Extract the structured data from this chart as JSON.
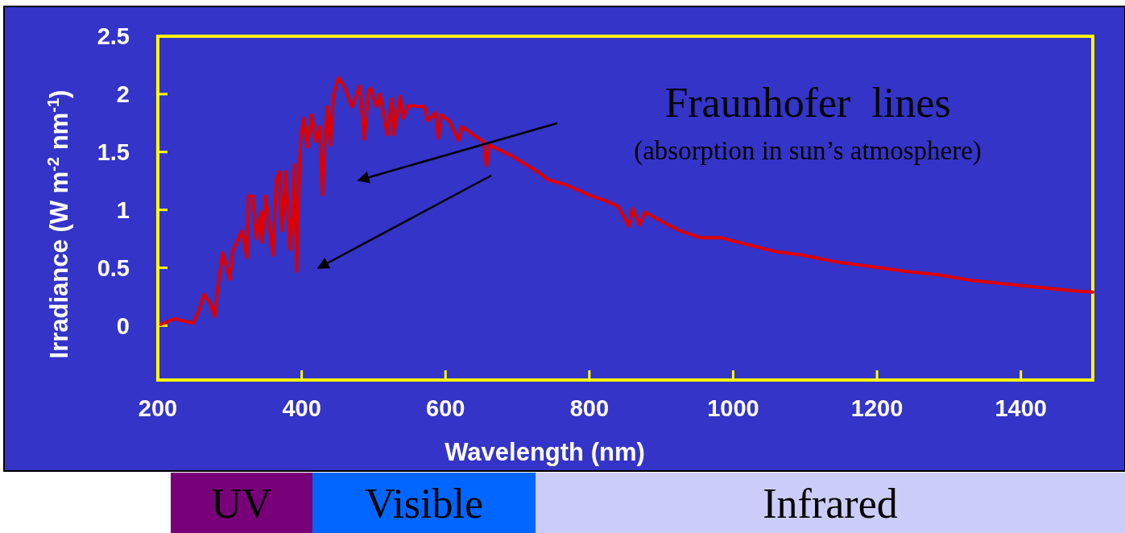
{
  "chart_data": {
    "type": "line",
    "xlabel": "Wavelength (nm)",
    "ylabel": "Irradiance (W m$^{-2}$ nm$^{-1}$)",
    "annotations": [
      "Fraunhofer  lines",
      "(absorption in sun’s atmosphere)",
      "UV",
      "Visible",
      "Infrared"
    ],
    "xlim": [
      200,
      1500
    ],
    "ylim": [
      -0.47,
      2.5
    ],
    "xticks": [
      200,
      400,
      600,
      800,
      1000,
      1200,
      1400
    ],
    "yticks": [
      0,
      0.5,
      1,
      1.5,
      2,
      2.5
    ],
    "series": [
      {
        "color": "#dd0000",
        "x": [
          204,
          223,
          249,
          257,
          264,
          272,
          279,
          283,
          290,
          294,
          300,
          304,
          311,
          317,
          324,
          326,
          332,
          337,
          343,
          345,
          350,
          360,
          365,
          369,
          373,
          378,
          384,
          388,
          390,
          393,
          397,
          399,
          403,
          408,
          414,
          420,
          425,
          429,
          433,
          436,
          440,
          444,
          451,
          459,
          470,
          481,
          487,
          493,
          496,
          504,
          509,
          519,
          526,
          528,
          537,
          541,
          548,
          571,
          575,
          586,
          590,
          594,
          605,
          618,
          623,
          638,
          653,
          657,
          661,
          691,
          728,
          743,
          766,
          803,
          822,
          840,
          855,
          860,
          870,
          877,
          907,
          926,
          954,
          983,
          1001,
          1059,
          1096,
          1144,
          1191,
          1238,
          1285,
          1332,
          1380,
          1427,
          1474,
          1500
        ],
        "values": [
          0.01,
          0.06,
          0.02,
          0.13,
          0.27,
          0.2,
          0.08,
          0.31,
          0.63,
          0.54,
          0.4,
          0.64,
          0.74,
          0.82,
          0.59,
          1.12,
          1.12,
          0.75,
          0.98,
          0.72,
          1.12,
          0.61,
          1.26,
          1.33,
          0.82,
          1.33,
          0.66,
          1.08,
          1.39,
          0.47,
          1.38,
          1.65,
          1.79,
          1.54,
          1.82,
          1.59,
          1.72,
          1.13,
          1.68,
          1.89,
          1.56,
          1.98,
          2.14,
          2.07,
          1.89,
          2.07,
          1.61,
          2.03,
          2.05,
          1.89,
          2.0,
          1.65,
          1.96,
          1.65,
          1.98,
          1.79,
          1.9,
          1.89,
          1.77,
          1.84,
          1.62,
          1.82,
          1.77,
          1.6,
          1.72,
          1.65,
          1.59,
          1.38,
          1.56,
          1.47,
          1.33,
          1.26,
          1.22,
          1.12,
          1.08,
          1.03,
          0.86,
          1.01,
          0.87,
          0.98,
          0.88,
          0.82,
          0.76,
          0.76,
          0.73,
          0.64,
          0.61,
          0.55,
          0.51,
          0.47,
          0.44,
          0.39,
          0.36,
          0.33,
          0.3,
          0.29
        ]
      }
    ]
  }
}
